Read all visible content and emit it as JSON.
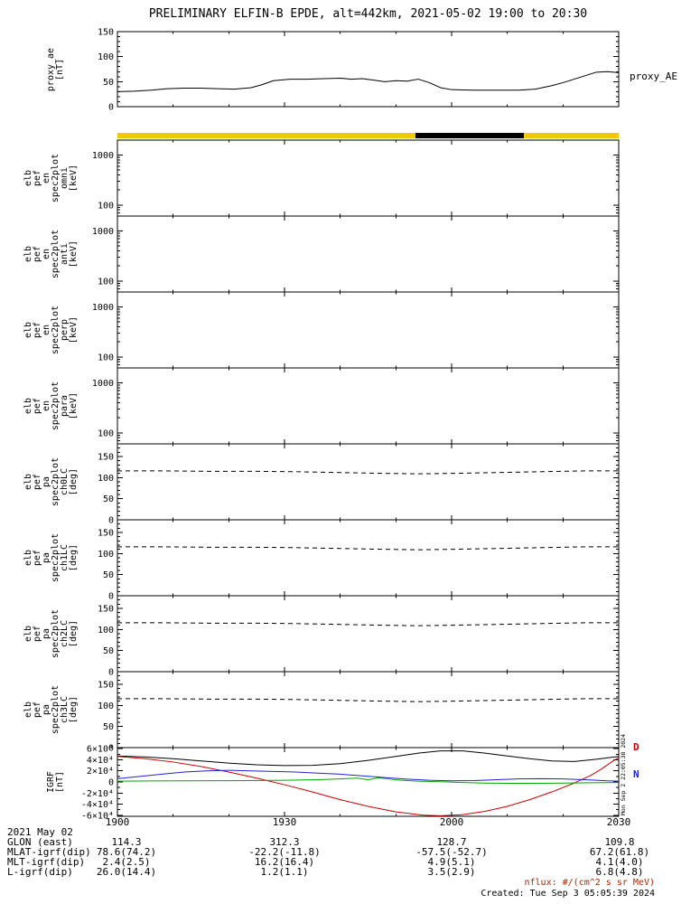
{
  "title": "PRELIMINARY ELFIN-B EPDE, alt=442km, 2021-05-02 19:00 to 20:30",
  "watermark": "Mon Sep  2 22:05:38 2024",
  "right_labels": {
    "proxy": "proxy_AE",
    "igrf": [
      {
        "text": "D",
        "color": "#cc0000"
      },
      {
        "text": "N",
        "color": "#2222cc"
      }
    ]
  },
  "availability": {
    "base_color": "#f2c80a",
    "segments": [
      {
        "start_min": 53.5,
        "end_min": 73.0,
        "color": "#000000"
      }
    ]
  },
  "xaxis": {
    "start": "19:00",
    "end": "20:30",
    "duration_min": 90,
    "major_tick_min": [
      0,
      30,
      60,
      90
    ],
    "minor_step_min": 10,
    "tick_labels": [
      "1900",
      "1930",
      "2000",
      "2030"
    ]
  },
  "footer": {
    "date_label": "2021 May 02",
    "xticks": [
      "1900",
      "1930",
      "2000",
      "2030"
    ],
    "rows": [
      {
        "label": "GLON (east)",
        "values": [
          "114.3",
          "312.3",
          "128.7",
          "109.8"
        ]
      },
      {
        "label": "MLAT-igrf(dip)",
        "values": [
          "78.6(74.2)",
          "-22.2(-11.8)",
          "-57.5(-52.7)",
          "67.2(61.8)"
        ]
      },
      {
        "label": "MLT-igrf(dip)",
        "values": [
          "2.4(2.5)",
          "16.2(16.4)",
          "4.9(5.1)",
          "4.1(4.0)"
        ]
      },
      {
        "label": "L-igrf(dip)",
        "values": [
          "26.0(14.4)",
          "1.2(1.1)",
          "3.5(2.9)",
          "6.8(4.8)"
        ]
      }
    ],
    "nflux_note": "nflux: #/(cm^2 s sr MeV)",
    "nflux_color": "#b02500",
    "created": "Created: Tue Sep  3 05:05:39 2024"
  },
  "chart_data": [
    {
      "id": "proxy_ae",
      "type": "line",
      "ylabel_lines": [
        "proxy_ae",
        "[nT]"
      ],
      "yscale": "linear",
      "ylim": [
        0,
        150
      ],
      "yticks": [
        0,
        50,
        100,
        150
      ],
      "yminor_step": 10,
      "series": [
        {
          "name": "proxy_AE",
          "color": "#000000",
          "t": [
            0,
            3,
            6,
            9,
            12,
            15,
            18,
            21,
            24,
            26,
            28,
            31,
            34,
            37,
            40,
            42,
            44,
            46,
            48,
            50,
            52,
            54,
            56,
            58,
            60,
            64,
            68,
            72,
            75,
            78,
            80,
            82,
            84,
            86,
            88,
            90
          ],
          "v": [
            30,
            31,
            33,
            36,
            37,
            37,
            36,
            35,
            38,
            44,
            52,
            55,
            55,
            56,
            57,
            55,
            56,
            53,
            50,
            52,
            51,
            55,
            48,
            38,
            34,
            33,
            33,
            33,
            35,
            42,
            48,
            55,
            62,
            69,
            70,
            68
          ]
        }
      ]
    },
    {
      "id": "elb_pef_en_spec2plot_omni",
      "type": "spectrogram",
      "empty": true,
      "ylabel_lines": [
        "elb",
        "pef",
        "en",
        "spec2plot",
        "omni",
        "[keV]"
      ],
      "yscale": "log",
      "ylim": [
        60,
        2000
      ],
      "yticks": [
        100,
        1000
      ],
      "ytick_labels": [
        "100",
        "1000"
      ],
      "series": []
    },
    {
      "id": "elb_pef_en_spec2plot_anti",
      "type": "spectrogram",
      "empty": true,
      "ylabel_lines": [
        "elb",
        "pef",
        "en",
        "spec2plot",
        "anti",
        "[keV]"
      ],
      "yscale": "log",
      "ylim": [
        60,
        2000
      ],
      "yticks": [
        100,
        1000
      ],
      "ytick_labels": [
        "100",
        "1000"
      ],
      "series": []
    },
    {
      "id": "elb_pef_en_spec2plot_perp",
      "type": "spectrogram",
      "empty": true,
      "ylabel_lines": [
        "elb",
        "pef",
        "en",
        "spec2plot",
        "perp",
        "[keV]"
      ],
      "yscale": "log",
      "ylim": [
        60,
        2000
      ],
      "yticks": [
        100,
        1000
      ],
      "ytick_labels": [
        "100",
        "1000"
      ],
      "series": []
    },
    {
      "id": "elb_pef_en_spec2plot_para",
      "type": "spectrogram",
      "empty": true,
      "ylabel_lines": [
        "elb",
        "pef",
        "en",
        "spec2plot",
        "para",
        "[keV]"
      ],
      "yscale": "log",
      "ylim": [
        60,
        2000
      ],
      "yticks": [
        100,
        1000
      ],
      "ytick_labels": [
        "100",
        "1000"
      ],
      "series": []
    },
    {
      "id": "elb_pef_pa_spec2plot_ch0LC",
      "type": "line",
      "ylabel_lines": [
        "elb",
        "pef",
        "pa",
        "spec2plot",
        "ch0LC",
        "[deg]"
      ],
      "yscale": "linear",
      "ylim": [
        0,
        180
      ],
      "yticks": [
        0,
        50,
        100,
        150
      ],
      "yminor_step": 10,
      "series": [
        {
          "name": "losscone",
          "color": "#000000",
          "dashed": true,
          "t": [
            0,
            8,
            16,
            24,
            32,
            40,
            48,
            54,
            60,
            68,
            76,
            84,
            90
          ],
          "v": [
            116,
            116,
            115,
            115,
            114,
            112,
            110,
            109,
            110,
            112,
            114,
            116,
            116
          ]
        }
      ]
    },
    {
      "id": "elb_pef_pa_spec2plot_ch1LC",
      "type": "line",
      "ylabel_lines": [
        "elb",
        "pef",
        "pa",
        "spec2plot",
        "ch1LC",
        "[deg]"
      ],
      "yscale": "linear",
      "ylim": [
        0,
        180
      ],
      "yticks": [
        0,
        50,
        100,
        150
      ],
      "yminor_step": 10,
      "series": [
        {
          "name": "losscone",
          "color": "#000000",
          "dashed": true,
          "t": [
            0,
            8,
            16,
            24,
            32,
            40,
            48,
            54,
            60,
            68,
            76,
            84,
            90
          ],
          "v": [
            116,
            116,
            115,
            115,
            114,
            112,
            110,
            109,
            110,
            112,
            114,
            116,
            116
          ]
        }
      ]
    },
    {
      "id": "elb_pef_pa_spec2plot_ch2LC",
      "type": "line",
      "ylabel_lines": [
        "elb",
        "pef",
        "pa",
        "spec2plot",
        "ch2LC",
        "[deg]"
      ],
      "yscale": "linear",
      "ylim": [
        0,
        180
      ],
      "yticks": [
        0,
        50,
        100,
        150
      ],
      "yminor_step": 10,
      "series": [
        {
          "name": "losscone",
          "color": "#000000",
          "dashed": true,
          "t": [
            0,
            8,
            16,
            24,
            32,
            40,
            48,
            54,
            60,
            68,
            76,
            84,
            90
          ],
          "v": [
            116,
            116,
            115,
            115,
            114,
            112,
            110,
            109,
            110,
            112,
            114,
            116,
            116
          ]
        }
      ]
    },
    {
      "id": "elb_pef_pa_spec2plot_ch3LC",
      "type": "line",
      "ylabel_lines": [
        "elb",
        "pef",
        "pa",
        "spec2plot",
        "ch3LC",
        "[deg]"
      ],
      "yscale": "linear",
      "ylim": [
        0,
        180
      ],
      "yticks": [
        0,
        50,
        100,
        150
      ],
      "yminor_step": 10,
      "series": [
        {
          "name": "losscone",
          "color": "#000000",
          "dashed": true,
          "t": [
            0,
            8,
            16,
            24,
            32,
            40,
            48,
            54,
            60,
            68,
            76,
            84,
            90
          ],
          "v": [
            116,
            116,
            115,
            115,
            114,
            112,
            110,
            109,
            110,
            112,
            114,
            116,
            116
          ]
        }
      ]
    },
    {
      "id": "IGRF",
      "type": "line",
      "ylabel_lines": [
        "IGRF",
        "[nT]"
      ],
      "yscale": "linear",
      "ylim": [
        -62000,
        62000
      ],
      "yticks": [
        -60000,
        -40000,
        -20000,
        0,
        20000,
        40000,
        60000
      ],
      "ytick_labels": [
        "-6×10⁴",
        "-4×10⁴",
        "-2×10⁴",
        "0",
        "2×10⁴",
        "4×10⁴",
        "6×10⁴"
      ],
      "yminor_step": 10000,
      "series": [
        {
          "name": "B",
          "color": "#000000",
          "t": [
            0,
            5,
            10,
            15,
            20,
            25,
            30,
            35,
            40,
            45,
            50,
            54,
            58,
            62,
            66,
            70,
            74,
            78,
            82,
            86,
            90
          ],
          "v": [
            47000,
            45000,
            42000,
            38000,
            34000,
            31000,
            29500,
            30000,
            33000,
            39000,
            46000,
            52000,
            56000,
            56000,
            52000,
            47000,
            42000,
            38000,
            37000,
            41000,
            46000
          ]
        },
        {
          "name": "D",
          "color": "#cc0000",
          "t": [
            0,
            5,
            10,
            15,
            20,
            25,
            30,
            35,
            40,
            45,
            50,
            55,
            58,
            62,
            66,
            70,
            74,
            78,
            82,
            85,
            87,
            89,
            90
          ],
          "v": [
            46000,
            42000,
            36000,
            28000,
            18000,
            7000,
            -5000,
            -18000,
            -32000,
            -44000,
            -54000,
            -60000,
            -61000,
            -59000,
            -53000,
            -44000,
            -32000,
            -18000,
            -2000,
            12000,
            24000,
            38000,
            44000
          ]
        },
        {
          "name": "E",
          "color": "#00a800",
          "t": [
            0,
            6,
            12,
            18,
            24,
            30,
            36,
            40,
            43,
            45,
            47,
            49,
            51,
            54,
            58,
            62,
            66,
            70,
            75,
            80,
            85,
            90
          ],
          "v": [
            1500,
            1800,
            2000,
            2200,
            2500,
            3000,
            4000,
            5500,
            7000,
            4000,
            7500,
            5000,
            3000,
            1500,
            500,
            -1000,
            -2000,
            -2500,
            -2500,
            -2000,
            -1500,
            -1000
          ]
        },
        {
          "name": "N",
          "color": "#2222cc",
          "t": [
            0,
            4,
            8,
            12,
            16,
            20,
            24,
            28,
            32,
            36,
            40,
            44,
            48,
            52,
            56,
            60,
            64,
            68,
            72,
            76,
            80,
            84,
            88,
            90
          ],
          "v": [
            6000,
            10000,
            14000,
            18000,
            20000,
            21000,
            20000,
            19000,
            18000,
            16000,
            14000,
            11000,
            8000,
            5000,
            3000,
            2000,
            2500,
            4000,
            5500,
            6000,
            5500,
            4000,
            2000,
            1500
          ]
        }
      ]
    }
  ]
}
